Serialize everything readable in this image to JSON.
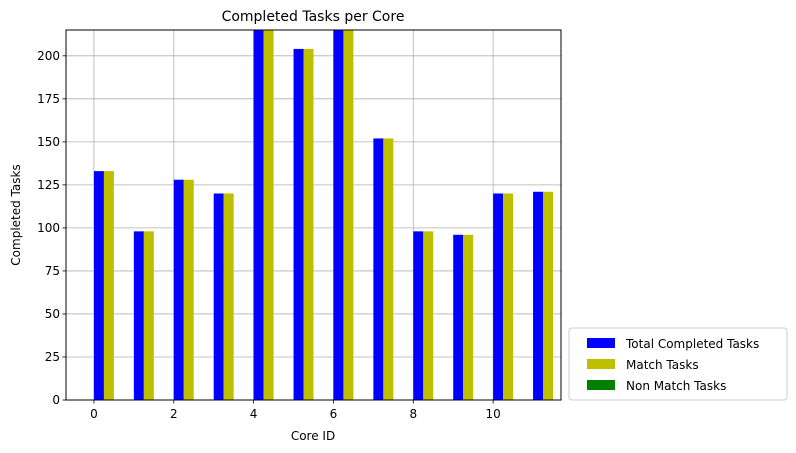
{
  "chart_data": {
    "type": "bar",
    "title": "Completed Tasks per Core",
    "xlabel": "Core ID",
    "ylabel": "Completed Tasks",
    "x": [
      0,
      1,
      2,
      3,
      4,
      5,
      6,
      7,
      8,
      9,
      10,
      11
    ],
    "xticks": [
      "0",
      "2",
      "4",
      "6",
      "8",
      "10"
    ],
    "yticks": [
      "0",
      "25",
      "50",
      "75",
      "100",
      "125",
      "150",
      "175",
      "200"
    ],
    "ylim": [
      0,
      215
    ],
    "xlim": [
      -0.7,
      11.7
    ],
    "grid": true,
    "legend_position": "outside bottom-right",
    "series": [
      {
        "name": "Total Completed Tasks",
        "color": "#0000ff",
        "values": [
          133,
          98,
          128,
          120,
          216,
          204,
          216,
          152,
          98,
          96,
          120,
          121
        ]
      },
      {
        "name": "Match Tasks",
        "color": "#bfbf00",
        "values": [
          133,
          98,
          128,
          120,
          216,
          204,
          216,
          152,
          98,
          96,
          120,
          121
        ]
      },
      {
        "name": "Non Match Tasks",
        "color": "#008000",
        "values": [
          0,
          0,
          0,
          0,
          0,
          0,
          0,
          0,
          0,
          0,
          0,
          0
        ]
      }
    ]
  }
}
